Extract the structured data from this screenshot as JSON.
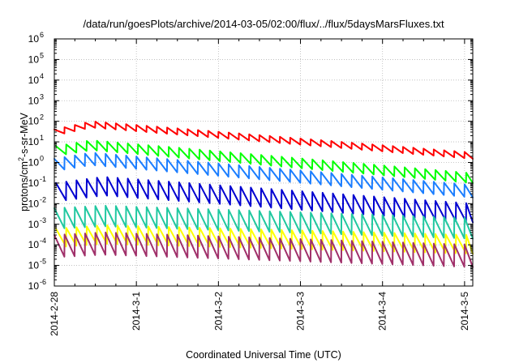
{
  "chart_data": {
    "type": "line",
    "title": "/data/run/goesPlots/archive/2014-03-05/02:00/flux/../flux/5daysMarsFluxes.txt",
    "xlabel": "Coordinated Universal Time (UTC)",
    "ylabel": "protons/cm²-s-sr-MeV",
    "y_scale": "log",
    "ylim_exp": [
      -6,
      6
    ],
    "xlim_days": [
      0,
      5.1
    ],
    "grid": true,
    "legend": "none",
    "x_ticks": [
      {
        "day": 0,
        "label": "2014-2-28"
      },
      {
        "day": 1,
        "label": "2014-3-1"
      },
      {
        "day": 2,
        "label": "2014-3-2"
      },
      {
        "day": 3,
        "label": "2014-3-3"
      },
      {
        "day": 4,
        "label": "2014-3-4"
      },
      {
        "day": 5,
        "label": "2014-3-5"
      }
    ],
    "y_ticks": [
      {
        "exp": -6,
        "label": "-6"
      },
      {
        "exp": -5,
        "label": "-5"
      },
      {
        "exp": -4,
        "label": "-4"
      },
      {
        "exp": -3,
        "label": "-3"
      },
      {
        "exp": -2,
        "label": "-2"
      },
      {
        "exp": -1,
        "label": "-1"
      },
      {
        "exp": 0,
        "label": "0"
      },
      {
        "exp": 1,
        "label": "1"
      },
      {
        "exp": 2,
        "label": "2"
      },
      {
        "exp": 3,
        "label": "3"
      },
      {
        "exp": 4,
        "label": "4"
      },
      {
        "exp": 5,
        "label": "5"
      },
      {
        "exp": 6,
        "label": "6"
      }
    ],
    "sawtooth_period_days": 0.125,
    "series": [
      {
        "color": "#ff0000",
        "start_peak": 40,
        "mid_peak": 100,
        "mid_day": 0.45,
        "end_peak": 3,
        "amplitude": 2
      },
      {
        "color": "#00ff00",
        "start_peak": 6,
        "mid_peak": 12,
        "mid_day": 0.45,
        "end_peak": 0.3,
        "amplitude": 3
      },
      {
        "color": "#1a7dff",
        "start_peak": 1.5,
        "mid_peak": 3,
        "mid_day": 0.45,
        "end_peak": 0.08,
        "amplitude": 4
      },
      {
        "color": "#0000d0",
        "start_peak": 0.1,
        "mid_peak": 0.2,
        "mid_day": 0.6,
        "end_peak": 0.01,
        "amplitude": 8
      },
      {
        "color": "#20c8a0",
        "start_peak": 0.006,
        "mid_peak": 0.008,
        "mid_day": 0.6,
        "end_peak": 0.002,
        "amplitude": 10
      },
      {
        "color": "#ffff00",
        "start_peak": 0.0006,
        "mid_peak": 0.0009,
        "mid_day": 0.6,
        "end_peak": 0.0003,
        "amplitude": 8
      },
      {
        "color": "#a0306a",
        "start_peak": 0.0003,
        "mid_peak": 0.0004,
        "mid_day": 0.6,
        "end_peak": 0.0001,
        "amplitude": 12
      }
    ]
  }
}
